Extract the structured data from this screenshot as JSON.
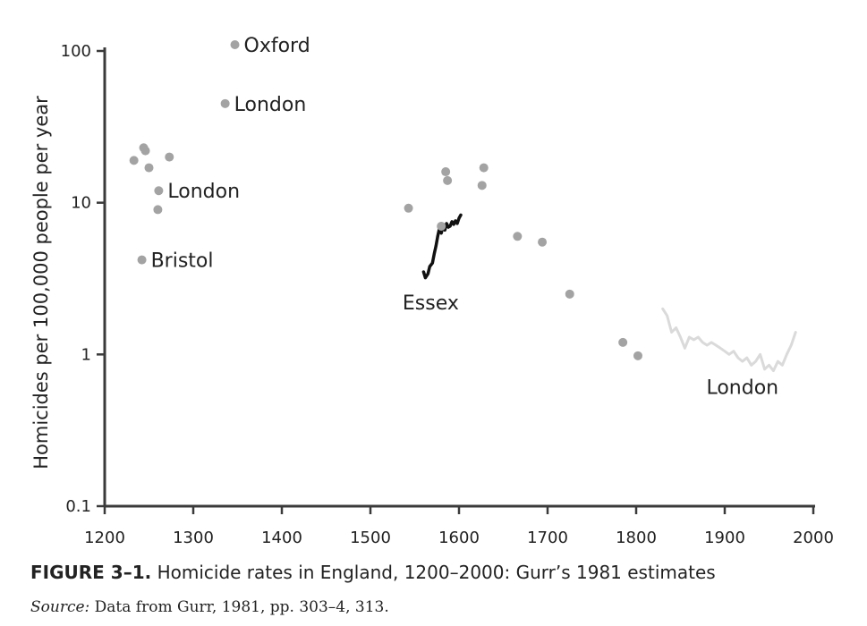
{
  "caption": {
    "label": "FIGURE 3–1.",
    "title": "Homicide rates in England, 1200–2000: Gurr’s 1981 estimates"
  },
  "source": {
    "label": "Source:",
    "text": "Data from Gurr, 1981, pp. 303–4, 313."
  },
  "chart_data": {
    "type": "scatter",
    "title": "Homicide rates in England, 1200–2000: Gurr’s 1981 estimates",
    "xlabel": "",
    "ylabel": "Homicides per 100,000 people per year",
    "xlim": [
      1200,
      2000
    ],
    "ylim": [
      0.1,
      100
    ],
    "yscale": "log",
    "grid": false,
    "x_ticks": [
      1200,
      1300,
      1400,
      1500,
      1600,
      1700,
      1800,
      1900,
      2000
    ],
    "x_tick_labels": [
      "1200",
      "1300",
      "1400",
      "1500",
      "1600",
      "1700",
      "1800",
      "1900",
      "2000"
    ],
    "y_ticks": [
      0.1,
      1,
      10,
      100
    ],
    "y_tick_labels": [
      "0.1",
      "1",
      "10",
      "100"
    ],
    "colors": {
      "points": "#a3a3a3",
      "essex": "#111111",
      "london_series": "#dadada",
      "axis": "#3a3a3a",
      "text": "#222222"
    },
    "points": [
      {
        "x": 1233,
        "y": 19
      },
      {
        "x": 1242,
        "y": 4.2,
        "label": "Bristol"
      },
      {
        "x": 1244,
        "y": 23
      },
      {
        "x": 1246,
        "y": 22
      },
      {
        "x": 1250,
        "y": 17
      },
      {
        "x": 1260,
        "y": 9
      },
      {
        "x": 1261,
        "y": 12,
        "label": "London"
      },
      {
        "x": 1273,
        "y": 20
      },
      {
        "x": 1336,
        "y": 45,
        "label": "London"
      },
      {
        "x": 1347,
        "y": 110,
        "label": "Oxford"
      },
      {
        "x": 1543,
        "y": 9.2
      },
      {
        "x": 1580,
        "y": 7
      },
      {
        "x": 1585,
        "y": 16
      },
      {
        "x": 1587,
        "y": 14
      },
      {
        "x": 1626,
        "y": 13
      },
      {
        "x": 1628,
        "y": 17
      },
      {
        "x": 1666,
        "y": 6
      },
      {
        "x": 1694,
        "y": 5.5
      },
      {
        "x": 1725,
        "y": 2.5
      },
      {
        "x": 1785,
        "y": 1.2
      },
      {
        "x": 1802,
        "y": 0.98
      }
    ],
    "series": [
      {
        "name": "Essex",
        "x": [
          1560,
          1562,
          1565,
          1567,
          1570,
          1572,
          1574,
          1576,
          1578,
          1580,
          1582,
          1584,
          1586,
          1588,
          1590,
          1592,
          1594,
          1596,
          1598,
          1600,
          1602
        ],
        "y": [
          3.5,
          3.2,
          3.4,
          3.8,
          4.0,
          4.6,
          5.2,
          6.0,
          6.8,
          6.3,
          7.0,
          6.6,
          7.3,
          6.9,
          7.0,
          7.5,
          7.2,
          7.6,
          7.3,
          7.9,
          8.3
        ]
      },
      {
        "name": "London",
        "x": [
          1830,
          1835,
          1840,
          1845,
          1850,
          1855,
          1860,
          1865,
          1870,
          1875,
          1880,
          1885,
          1890,
          1895,
          1900,
          1905,
          1910,
          1915,
          1920,
          1925,
          1930,
          1935,
          1940,
          1945,
          1950,
          1955,
          1960,
          1965,
          1970,
          1975,
          1980
        ],
        "y": [
          2.0,
          1.8,
          1.4,
          1.5,
          1.3,
          1.1,
          1.3,
          1.25,
          1.3,
          1.2,
          1.15,
          1.2,
          1.15,
          1.1,
          1.05,
          1.0,
          1.05,
          0.95,
          0.9,
          0.95,
          0.85,
          0.9,
          1.0,
          0.8,
          0.85,
          0.78,
          0.9,
          0.85,
          1.0,
          1.15,
          1.4
        ]
      }
    ]
  }
}
